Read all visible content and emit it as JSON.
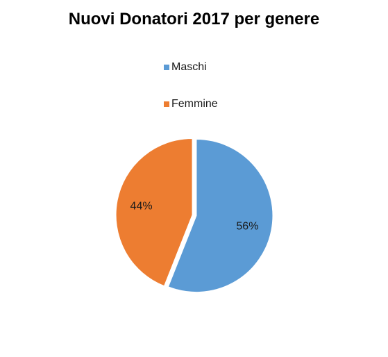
{
  "chart_data": {
    "type": "pie",
    "title": "Nuovi Donatori 2017 per genere",
    "categories": [
      "Maschi",
      "Femmine"
    ],
    "values": [
      56,
      44
    ],
    "labels": [
      "56%",
      "44%"
    ],
    "colors": [
      "#5b9bd5",
      "#ed7d31"
    ],
    "legend_position": "top",
    "start_angle_deg": 0,
    "direction": "clockwise"
  }
}
